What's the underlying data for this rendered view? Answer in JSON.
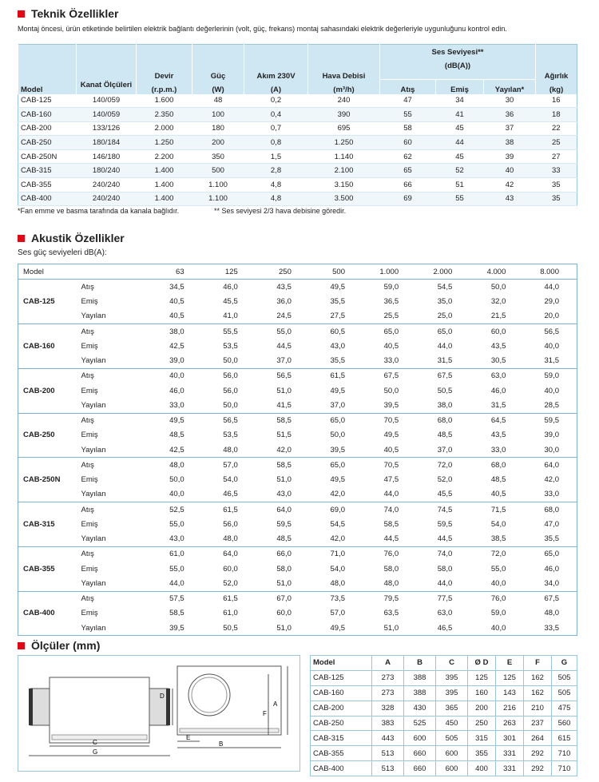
{
  "teknik": {
    "title": "Teknik Özellikler",
    "intro": "Montaj öncesi, ürün etiketinde belirtilen elektrik bağlantı değerlerinin (volt, güç, frekans) montaj sahasındaki elektrik değerleriyle uygunluğunu kontrol edin.",
    "columns": [
      {
        "bottom": "Model"
      },
      {
        "top": "Kanat Ölçüleri"
      },
      {
        "top": "Devir",
        "bottom": "(r.p.m.)"
      },
      {
        "top": "Güç",
        "bottom": "(W)"
      },
      {
        "top": "Akım 230V",
        "bottom": "(A)"
      },
      {
        "top": "Hava Debisi",
        "bottom": "(m³/h)"
      }
    ],
    "sound_header": {
      "top": "Ses Seviyesi**",
      "bottom": "(dB(A))",
      "sub": [
        "Atış",
        "Emiş",
        "Yayılan*"
      ]
    },
    "weight": {
      "top": "Ağırlık",
      "bottom": "(kg)"
    },
    "rows": [
      [
        "CAB-125",
        "140/059",
        "1.600",
        "48",
        "0,2",
        "240",
        "47",
        "34",
        "30",
        "16"
      ],
      [
        "CAB-160",
        "140/059",
        "2.350",
        "100",
        "0,4",
        "390",
        "55",
        "41",
        "36",
        "18"
      ],
      [
        "CAB-200",
        "133/126",
        "2.000",
        "180",
        "0,7",
        "695",
        "58",
        "45",
        "37",
        "22"
      ],
      [
        "CAB-250",
        "180/184",
        "1.250",
        "200",
        "0,8",
        "1.250",
        "60",
        "44",
        "38",
        "25"
      ],
      [
        "CAB-250N",
        "146/180",
        "2.200",
        "350",
        "1,5",
        "1.140",
        "62",
        "45",
        "39",
        "27"
      ],
      [
        "CAB-315",
        "180/240",
        "1.400",
        "500",
        "2,8",
        "2.100",
        "65",
        "52",
        "40",
        "33"
      ],
      [
        "CAB-355",
        "240/240",
        "1.400",
        "1.100",
        "4,8",
        "3.150",
        "66",
        "51",
        "42",
        "35"
      ],
      [
        "CAB-400",
        "240/240",
        "1.400",
        "1.100",
        "4,8",
        "3.500",
        "69",
        "55",
        "43",
        "35"
      ]
    ],
    "notes": [
      "*Fan emme ve basma tarafında da kanala bağlıdır.",
      "** Ses seviyesi 2/3 hava debisine göredir."
    ]
  },
  "akustik": {
    "title": "Akustik Özellikler",
    "subtitle": "Ses güç seviyeleri dB(A):",
    "header": [
      "Model",
      "63",
      "125",
      "250",
      "500",
      "1.000",
      "2.000",
      "4.000",
      "8.000"
    ],
    "groups": [
      {
        "model": "CAB-125",
        "rows": [
          {
            "label": "Atış",
            "values": [
              "34,5",
              "46,0",
              "43,5",
              "49,5",
              "59,0",
              "54,5",
              "50,0",
              "44,0"
            ]
          },
          {
            "label": "Emiş",
            "values": [
              "40,5",
              "45,5",
              "36,0",
              "35,5",
              "36,5",
              "35,0",
              "32,0",
              "29,0"
            ]
          },
          {
            "label": "Yayılan",
            "values": [
              "40,5",
              "41,0",
              "24,5",
              "27,5",
              "25,5",
              "25,0",
              "21,5",
              "20,0"
            ]
          }
        ]
      },
      {
        "model": "CAB-160",
        "rows": [
          {
            "label": "Atış",
            "values": [
              "38,0",
              "55,5",
              "55,0",
              "60,5",
              "65,0",
              "65,0",
              "60,0",
              "56,5"
            ]
          },
          {
            "label": "Emiş",
            "values": [
              "42,5",
              "53,5",
              "44,5",
              "43,0",
              "40,5",
              "44,0",
              "43,5",
              "40,0"
            ]
          },
          {
            "label": "Yayılan",
            "values": [
              "39,0",
              "50,0",
              "37,0",
              "35,5",
              "33,0",
              "31,5",
              "30,5",
              "31,5"
            ]
          }
        ]
      },
      {
        "model": "CAB-200",
        "rows": [
          {
            "label": "Atış",
            "values": [
              "40,0",
              "56,0",
              "56,5",
              "61,5",
              "67,5",
              "67,5",
              "63,0",
              "59,0"
            ]
          },
          {
            "label": "Emiş",
            "values": [
              "46,0",
              "56,0",
              "51,0",
              "49,5",
              "50,0",
              "50,5",
              "46,0",
              "40,0"
            ]
          },
          {
            "label": "Yayılan",
            "values": [
              "33,0",
              "50,0",
              "41,5",
              "37,0",
              "39,5",
              "38,0",
              "31,5",
              "28,5"
            ]
          }
        ]
      },
      {
        "model": "CAB-250",
        "rows": [
          {
            "label": "Atış",
            "values": [
              "49,5",
              "56,5",
              "58,5",
              "65,0",
              "70,5",
              "68,0",
              "64,5",
              "59,5"
            ]
          },
          {
            "label": "Emiş",
            "values": [
              "48,5",
              "53,5",
              "51,5",
              "50,0",
              "49,5",
              "48,5",
              "43,5",
              "39,0"
            ]
          },
          {
            "label": "Yayılan",
            "values": [
              "42,5",
              "48,0",
              "42,0",
              "39,5",
              "40,5",
              "37,0",
              "33,0",
              "30,0"
            ]
          }
        ]
      },
      {
        "model": "CAB-250N",
        "rows": [
          {
            "label": "Atış",
            "values": [
              "48,0",
              "57,0",
              "58,5",
              "65,0",
              "70,5",
              "72,0",
              "68,0",
              "64,0"
            ]
          },
          {
            "label": "Emiş",
            "values": [
              "50,0",
              "54,0",
              "51,0",
              "49,5",
              "47,5",
              "52,0",
              "48,5",
              "42,0"
            ]
          },
          {
            "label": "Yayılan",
            "values": [
              "40,0",
              "46,5",
              "43,0",
              "42,0",
              "44,0",
              "45,5",
              "40,5",
              "33,0"
            ]
          }
        ]
      },
      {
        "model": "CAB-315",
        "rows": [
          {
            "label": "Atış",
            "values": [
              "52,5",
              "61,5",
              "64,0",
              "69,0",
              "74,0",
              "74,5",
              "71,5",
              "68,0"
            ]
          },
          {
            "label": "Emiş",
            "values": [
              "55,0",
              "56,0",
              "59,5",
              "54,5",
              "58,5",
              "59,5",
              "54,0",
              "47,0"
            ]
          },
          {
            "label": "Yayılan",
            "values": [
              "43,0",
              "48,0",
              "48,5",
              "42,0",
              "44,5",
              "44,5",
              "38,5",
              "35,5"
            ]
          }
        ]
      },
      {
        "model": "CAB-355",
        "rows": [
          {
            "label": "Atış",
            "values": [
              "61,0",
              "64,0",
              "66,0",
              "71,0",
              "76,0",
              "74,0",
              "72,0",
              "65,0"
            ]
          },
          {
            "label": "Emiş",
            "values": [
              "55,0",
              "60,0",
              "58,0",
              "54,0",
              "58,0",
              "58,0",
              "55,0",
              "46,0"
            ]
          },
          {
            "label": "Yayılan",
            "values": [
              "44,0",
              "52,0",
              "51,0",
              "48,0",
              "48,0",
              "44,0",
              "40,0",
              "34,0"
            ]
          }
        ]
      },
      {
        "model": "CAB-400",
        "rows": [
          {
            "label": "Atış",
            "values": [
              "57,5",
              "61,5",
              "67,0",
              "73,5",
              "79,5",
              "77,5",
              "76,0",
              "67,5"
            ]
          },
          {
            "label": "Emiş",
            "values": [
              "58,5",
              "61,0",
              "60,0",
              "57,0",
              "63,5",
              "63,0",
              "59,0",
              "48,0"
            ]
          },
          {
            "label": "Yayılan",
            "values": [
              "39,5",
              "50,5",
              "51,0",
              "49,5",
              "51,0",
              "46,5",
              "40,0",
              "33,5"
            ]
          }
        ]
      }
    ]
  },
  "olculer": {
    "title": "Ölçüler (mm)",
    "diagram_labels": {
      "D": "D",
      "C": "C",
      "G": "G",
      "E": "E",
      "B": "B",
      "F": "F",
      "A": "A"
    },
    "header": [
      "Model",
      "A",
      "B",
      "C",
      "Ø D",
      "E",
      "F",
      "G"
    ],
    "rows": [
      [
        "CAB-125",
        "273",
        "388",
        "395",
        "125",
        "125",
        "162",
        "505"
      ],
      [
        "CAB-160",
        "273",
        "388",
        "395",
        "160",
        "143",
        "162",
        "505"
      ],
      [
        "CAB-200",
        "328",
        "430",
        "365",
        "200",
        "216",
        "210",
        "475"
      ],
      [
        "CAB-250",
        "383",
        "525",
        "450",
        "250",
        "263",
        "237",
        "560"
      ],
      [
        "CAB-315",
        "443",
        "600",
        "505",
        "315",
        "301",
        "264",
        "615"
      ],
      [
        "CAB-355",
        "513",
        "660",
        "600",
        "355",
        "331",
        "292",
        "710"
      ],
      [
        "CAB-400",
        "513",
        "660",
        "600",
        "400",
        "331",
        "292",
        "710"
      ]
    ]
  }
}
